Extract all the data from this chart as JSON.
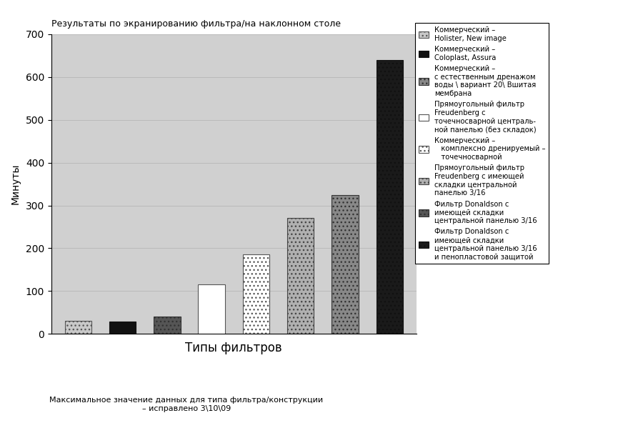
{
  "title": "Результаты по экранированию фильтра/на наклонном столе",
  "xlabel": "Типы фильтров",
  "ylabel": "Минуты",
  "subtitle": "Максимальное значение данных для типа фильтра/конструкции\n– исправлено 3\\10\\09",
  "ylim": [
    0,
    700
  ],
  "yticks": [
    0,
    100,
    200,
    300,
    400,
    500,
    600,
    700
  ],
  "bar_values": [
    30,
    28,
    40,
    115,
    185,
    270,
    325,
    640
  ],
  "bar_colors": [
    "#c8c8c8",
    "#111111",
    "#555555",
    "#ffffff",
    "#ffffff",
    "#b0b0b0",
    "#888888",
    "#1a1a1a"
  ],
  "bar_edgecolors": [
    "#555555",
    "#111111",
    "#333333",
    "#555555",
    "#555555",
    "#444444",
    "#333333",
    "#111111"
  ],
  "bar_hatches": [
    "...",
    "",
    "...",
    "",
    "...",
    "...",
    "...",
    "..."
  ],
  "bar_width": 0.6,
  "background_color": "#ffffff",
  "plot_bg_color": "#d0d0d0",
  "legend_entries": [
    "Коммерческий –\nHolister, New image",
    "Коммерческий –\nColoplast, Assura",
    "Коммерческий –\nс естественным дренажом\nводы \\ вариант 20\\ Вшитая\nмембрана",
    "Прямоугольный фильтр\nFreudenberg с\nточечносварной централь-\nной панелью (без складок)",
    "Коммерческий –\n   комплексно дренируемый –\n   точечносварной",
    "Прямоугольный фильтр\nFreudenberg с имеющей\nскладки центральной\nпанелью 3/16",
    "Фильтр Donaldson с\nимеющей складки\nцентральной панелью 3/16",
    "Фильтр Donaldson с\nимеющей складки\nцентральной панелью 3/16\nи пенопластовой защитой"
  ],
  "legend_colors": [
    "#c8c8c8",
    "#111111",
    "#888888",
    "#ffffff",
    "#ffffff",
    "#b0b0b0",
    "#555555",
    "#1a1a1a"
  ],
  "legend_hatches": [
    "...",
    "",
    "...",
    "",
    "...",
    "...",
    "...",
    "..."
  ],
  "legend_edgecolors": [
    "#555555",
    "#111111",
    "#333333",
    "#555555",
    "#555555",
    "#444444",
    "#333333",
    "#111111"
  ]
}
